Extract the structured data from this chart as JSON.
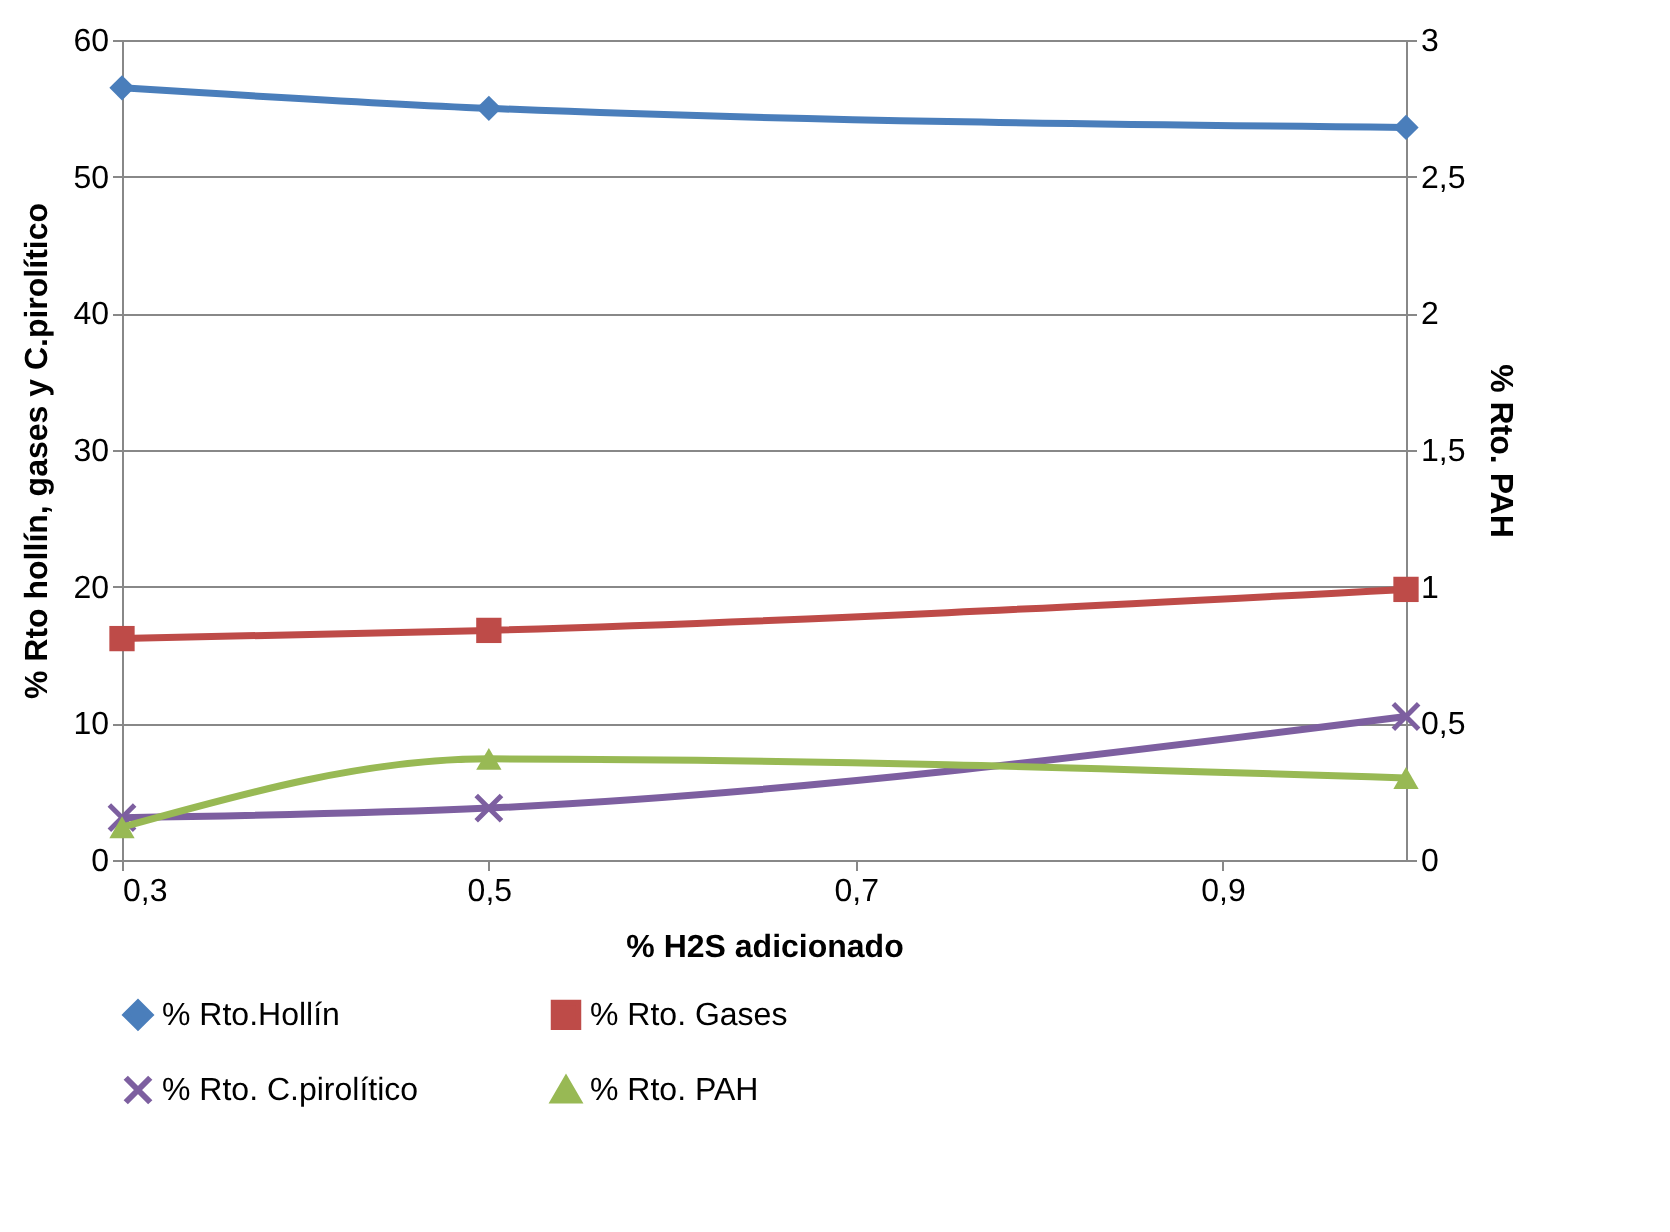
{
  "chart_data": {
    "type": "line",
    "xlabel": "% H2S adicionado",
    "ylabel": "% Rto hollín, gases y C.pirolítico",
    "y2label": "% Rto. PAH",
    "x": [
      0.3,
      0.5,
      1.0
    ],
    "series": [
      {
        "name": "% Rto.Hollín",
        "color": "#4a7ebb",
        "marker": "diamond",
        "values": [
          56.5,
          55.0,
          53.6
        ]
      },
      {
        "name": "% Rto. Gases",
        "color": "#be4b48",
        "marker": "square",
        "values": [
          16.2,
          16.8,
          19.8
        ]
      },
      {
        "name": "% Rto. C.pirolítico",
        "color": "#7d5fa0",
        "marker": "cross",
        "values": [
          3.1,
          3.8,
          10.5
        ]
      },
      {
        "name": "% Rto. PAH",
        "color": "#98b954",
        "marker": "triangle",
        "axis": "y2",
        "values": [
          0.12,
          0.37,
          0.3
        ]
      }
    ],
    "xlim": [
      0.3,
      1.0
    ],
    "xticks": [
      {
        "value": 0.3,
        "label": "0,3"
      },
      {
        "value": 0.5,
        "label": "0,5"
      },
      {
        "value": 0.7,
        "label": "0,7"
      },
      {
        "value": 0.9,
        "label": "0,9"
      }
    ],
    "ylim": [
      0,
      60
    ],
    "yticks": [
      0,
      10,
      20,
      30,
      40,
      50,
      60
    ],
    "y2lim": [
      0,
      3
    ],
    "y2ticks": [
      0,
      {
        "value": 0.5,
        "label": "0,5"
      },
      1,
      {
        "value": 1.5,
        "label": "1,5"
      },
      2,
      {
        "value": 2.5,
        "label": "2,5"
      },
      3
    ],
    "grid": "y",
    "legend": "bottom",
    "line_style": "solid"
  }
}
